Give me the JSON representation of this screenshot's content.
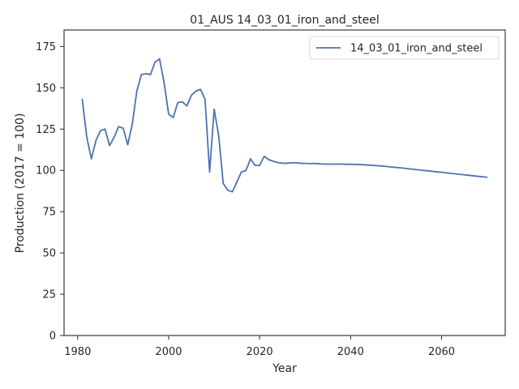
{
  "chart_data": {
    "type": "line",
    "title": "01_AUS 14_03_01_iron_and_steel",
    "xlabel": "Year",
    "ylabel": "Production (2017 = 100)",
    "xlim": [
      1977,
      2074
    ],
    "ylim": [
      0,
      185
    ],
    "x_ticks": [
      1980,
      2000,
      2020,
      2040,
      2060
    ],
    "y_ticks": [
      0,
      25,
      50,
      75,
      100,
      125,
      150,
      175
    ],
    "grid": false,
    "legend": {
      "position": "top-right"
    },
    "series": [
      {
        "name": "14_03_01_iron_and_steel",
        "color": "#4c72b0",
        "x": [
          1981,
          1982,
          1983,
          1984,
          1985,
          1986,
          1987,
          1988,
          1989,
          1990,
          1991,
          1992,
          1993,
          1994,
          1995,
          1996,
          1997,
          1998,
          1999,
          2000,
          2001,
          2002,
          2003,
          2004,
          2005,
          2006,
          2007,
          2008,
          2009,
          2010,
          2011,
          2012,
          2013,
          2014,
          2015,
          2016,
          2017,
          2018,
          2019,
          2020,
          2021,
          2022,
          2023,
          2024,
          2025,
          2026,
          2027,
          2028,
          2029,
          2030,
          2031,
          2032,
          2033,
          2034,
          2035,
          2036,
          2037,
          2038,
          2039,
          2040,
          2041,
          2042,
          2043,
          2044,
          2045,
          2046,
          2047,
          2048,
          2049,
          2050,
          2051,
          2052,
          2053,
          2054,
          2055,
          2056,
          2057,
          2058,
          2059,
          2060,
          2061,
          2062,
          2063,
          2064,
          2065,
          2066,
          2067,
          2068,
          2069,
          2070
        ],
        "y": [
          143,
          120,
          107,
          118,
          124,
          125,
          115,
          120,
          126.5,
          125.5,
          115.5,
          128,
          148,
          158,
          158.5,
          158,
          165.5,
          167.5,
          153,
          134,
          132,
          141,
          141.5,
          139,
          145.5,
          148,
          149,
          143,
          99,
          137,
          121,
          92,
          88,
          87,
          93,
          99,
          100,
          107,
          103,
          103,
          108.5,
          106.5,
          105.5,
          104.7,
          104.3,
          104.3,
          104.6,
          104.6,
          104.3,
          104.2,
          104.1,
          104.2,
          104.0,
          103.8,
          103.8,
          103.8,
          103.8,
          103.8,
          103.7,
          103.7,
          103.6,
          103.5,
          103.4,
          103.2,
          103.0,
          102.8,
          102.6,
          102.3,
          102.0,
          101.8,
          101.5,
          101.2,
          100.9,
          100.6,
          100.3,
          100.0,
          99.7,
          99.4,
          99.1,
          98.8,
          98.5,
          98.2,
          97.9,
          97.6,
          97.3,
          97.0,
          96.7,
          96.4,
          96.1,
          95.8
        ]
      }
    ]
  }
}
